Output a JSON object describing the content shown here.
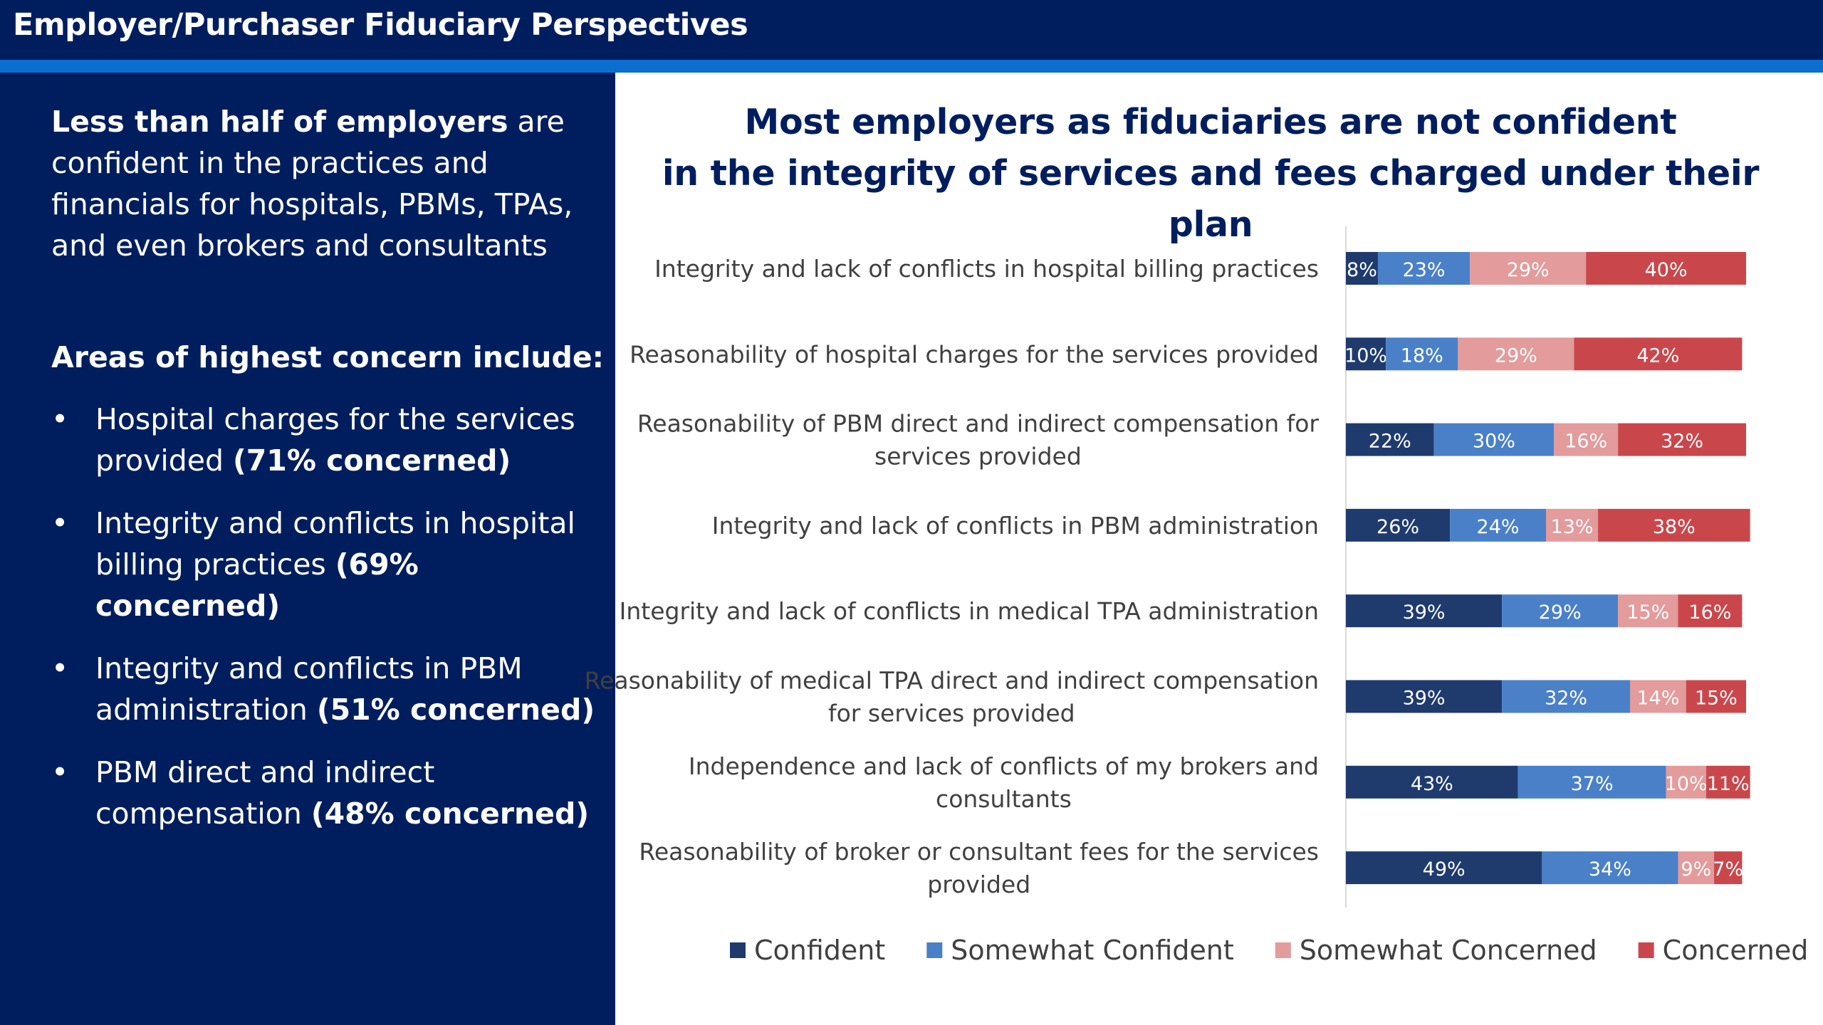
{
  "header": {
    "title": "Employer/Purchaser Fiduciary Perspectives"
  },
  "left_panel": {
    "intro_bold": "Less than half of employers",
    "intro_rest": " are confident in the practices and financials for hospitals, PBMs, TPAs, and even brokers and consultants",
    "concern_heading": "Areas of highest concern include:",
    "bullets": [
      {
        "text": "Hospital charges for the services provided ",
        "bold": "(71% concerned)"
      },
      {
        "text": "Integrity and conflicts in hospital billing practices ",
        "bold": "(69% concerned)"
      },
      {
        "text": "Integrity and conflicts in PBM administration ",
        "bold": "(51% concerned)"
      },
      {
        "text": "PBM direct and indirect compensation ",
        "bold": "(48% concerned)"
      }
    ]
  },
  "chart_data": {
    "type": "bar",
    "orientation": "horizontal",
    "stacked": true,
    "title_line1": "Most employers as fiduciaries are not confident",
    "title_line2": "in the integrity of services and fees charged under their plan",
    "categories": [
      [
        "Integrity and lack of conflicts in hospital billing practices"
      ],
      [
        "Reasonability of hospital charges for the services provided"
      ],
      [
        "Reasonability of PBM direct and indirect compensation for",
        "services provided"
      ],
      [
        "Integrity and lack of conflicts in PBM administration"
      ],
      [
        "Integrity and lack of conflicts in medical TPA administration"
      ],
      [
        "Reasonability of medical TPA direct and indirect compensation",
        "for services provided"
      ],
      [
        "Independence and lack of conflicts of my brokers and",
        "consultants"
      ],
      [
        "Reasonability of broker or consultant fees for the services",
        "provided"
      ]
    ],
    "series": [
      {
        "name": "Confident",
        "color": "#1f3b6e",
        "values": [
          8,
          10,
          22,
          26,
          39,
          39,
          43,
          49
        ]
      },
      {
        "name": "Somewhat Confident",
        "color": "#4a80c7",
        "values": [
          23,
          18,
          30,
          24,
          29,
          32,
          37,
          34
        ]
      },
      {
        "name": "Somewhat Concerned",
        "color": "#e39b9b",
        "values": [
          29,
          29,
          16,
          13,
          15,
          14,
          10,
          9
        ]
      },
      {
        "name": "Concerned",
        "color": "#c9474b",
        "values": [
          40,
          42,
          32,
          38,
          16,
          15,
          11,
          7
        ]
      }
    ],
    "value_suffix": "%",
    "legend_position": "bottom",
    "grid": false,
    "xlim": [
      0,
      100
    ]
  }
}
